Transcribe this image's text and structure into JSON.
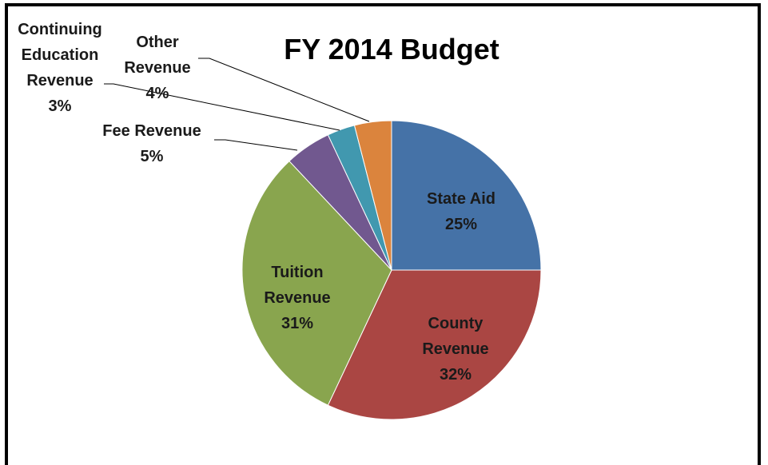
{
  "chart_data": {
    "type": "pie",
    "title": "FY 2014 Budget",
    "categories": [
      "State Aid",
      "County Revenue",
      "Tuition Revenue",
      "Fee Revenue",
      "Continuing Education Revenue",
      "Other Revenue"
    ],
    "values": [
      25,
      32,
      31,
      5,
      3,
      4
    ],
    "value_labels": [
      "25%",
      "32%",
      "31%",
      "5%",
      "3%",
      "4%"
    ],
    "colors": [
      "#4572a7",
      "#aa4643",
      "#89a54e",
      "#71588f",
      "#4198af",
      "#db843d"
    ]
  }
}
